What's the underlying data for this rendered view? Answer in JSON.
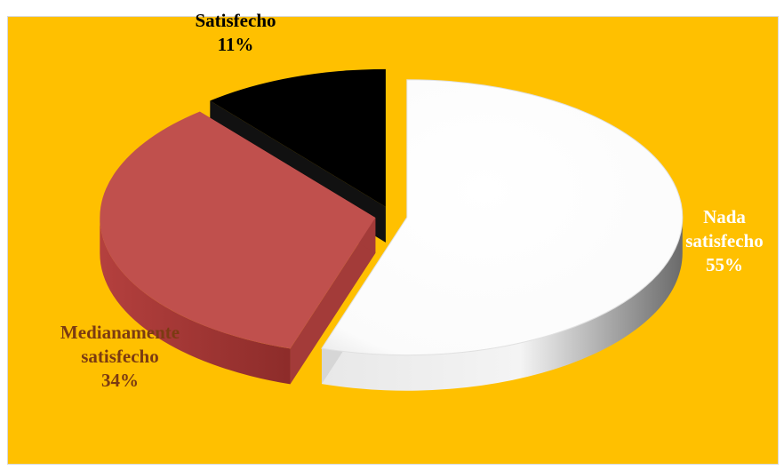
{
  "chart_data": {
    "type": "pie",
    "style": "3d-exploded",
    "slices": [
      {
        "label_line1": "Nada",
        "label_line2": "satisfecho",
        "pct_text": "55%",
        "value": 55,
        "color": "#ffffff"
      },
      {
        "label_line1": "Medianamente",
        "label_line2": "satisfecho",
        "pct_text": "34%",
        "value": 34,
        "color": "#c0504d"
      },
      {
        "label_line1": "Satisfecho",
        "label_line2": "",
        "pct_text": "11%",
        "value": 11,
        "color": "#000000"
      }
    ],
    "background": "#ffc000",
    "legend": "none"
  }
}
